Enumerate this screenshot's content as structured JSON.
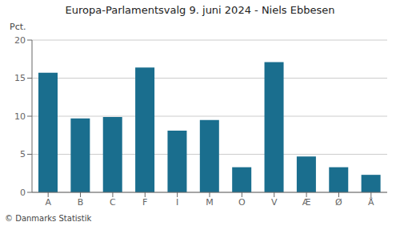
{
  "chart_data": {
    "type": "bar",
    "title": "Europa-Parlamentsvalg 9. juni 2024 - Niels Ebbesen",
    "ylabel": "Pct.",
    "annotations": [
      "© Danmarks Statistik"
    ],
    "categories": [
      "A",
      "B",
      "C",
      "F",
      "I",
      "M",
      "O",
      "V",
      "Æ",
      "Ø",
      "Å"
    ],
    "values": [
      15.7,
      9.7,
      9.9,
      16.4,
      8.1,
      9.5,
      3.3,
      17.1,
      4.7,
      3.3,
      2.3
    ],
    "color": "#1a6e8e",
    "ylim": [
      0,
      20
    ],
    "yticks": [
      0,
      5,
      10,
      15,
      20
    ],
    "grid": true
  }
}
